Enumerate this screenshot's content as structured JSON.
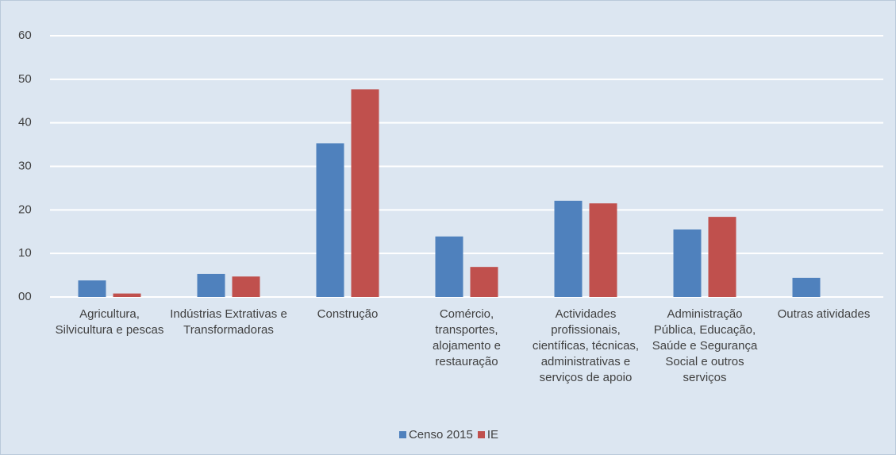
{
  "chart_data": {
    "type": "bar",
    "categories": [
      "Agricultura, Silvicultura e pescas",
      "Indústrias Extrativas e Transformadoras",
      "Construção",
      "Comércio, transportes, alojamento e restauração",
      "Actividades profissionais, científicas, técnicas, administrativas e serviços de apoio",
      "Administração Pública, Educação, Saúde e Segurança Social e outros serviços",
      "Outras atividades"
    ],
    "series": [
      {
        "name": "Censo 2015",
        "color": "#4f81bd",
        "values": [
          3.8,
          5.3,
          35.3,
          13.9,
          22.1,
          15.5,
          4.4
        ]
      },
      {
        "name": "IE",
        "color": "#c0504d",
        "values": [
          0.8,
          4.7,
          47.7,
          6.9,
          21.5,
          18.4,
          0
        ]
      }
    ],
    "ylim": [
      0,
      60
    ],
    "yticks": [
      {
        "value": 0,
        "label": "00"
      },
      10,
      20,
      30,
      40,
      50,
      60
    ],
    "grid": true,
    "legend": "bottom"
  }
}
